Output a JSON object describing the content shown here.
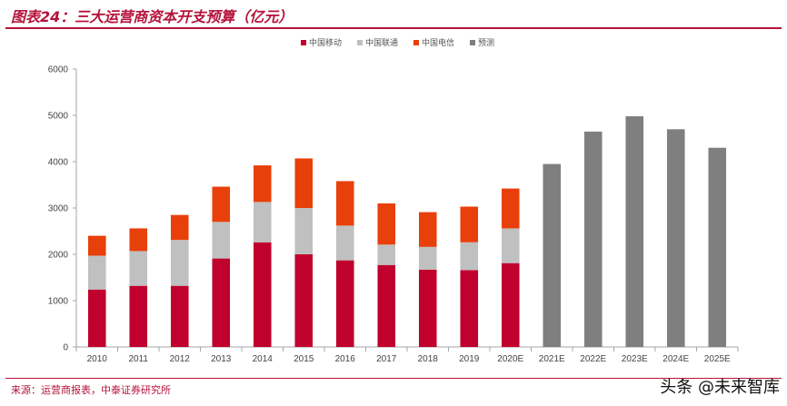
{
  "header": {
    "title": "图表24：三大运营商资本开支预算（亿元）"
  },
  "footer": {
    "source": "来源：运营商报表，中泰证券研究所",
    "watermark": "头条 @未来智库"
  },
  "chart_data": {
    "type": "bar",
    "stacked": true,
    "title": "图表24：三大运营商资本开支预算（亿元）",
    "xlabel": "",
    "ylabel": "",
    "ylim": [
      0,
      6000
    ],
    "yticks": [
      0,
      1000,
      2000,
      3000,
      4000,
      5000,
      6000
    ],
    "grid": false,
    "legend_position": "top-center",
    "categories": [
      "2010",
      "2011",
      "2012",
      "2013",
      "2014",
      "2015",
      "2016",
      "2017",
      "2018",
      "2019",
      "2020E",
      "2021E",
      "2022E",
      "2023E",
      "2024E",
      "2025E"
    ],
    "series": [
      {
        "name": "中国移动",
        "color": "#c0002d",
        "values": [
          1240,
          1320,
          1320,
          1910,
          2260,
          2000,
          1870,
          1770,
          1670,
          1660,
          1810,
          null,
          null,
          null,
          null,
          null
        ]
      },
      {
        "name": "中国联通",
        "color": "#c0c0c0",
        "values": [
          730,
          750,
          990,
          790,
          870,
          1000,
          750,
          440,
          490,
          600,
          750,
          null,
          null,
          null,
          null,
          null
        ]
      },
      {
        "name": "中国电信",
        "color": "#e8400a",
        "values": [
          430,
          490,
          540,
          760,
          790,
          1070,
          960,
          890,
          750,
          770,
          860,
          null,
          null,
          null,
          null,
          null
        ]
      },
      {
        "name": "预测",
        "color": "#7f7f7f",
        "values": [
          null,
          null,
          null,
          null,
          null,
          null,
          null,
          null,
          null,
          null,
          null,
          3950,
          4650,
          4980,
          4700,
          4300
        ]
      }
    ]
  }
}
